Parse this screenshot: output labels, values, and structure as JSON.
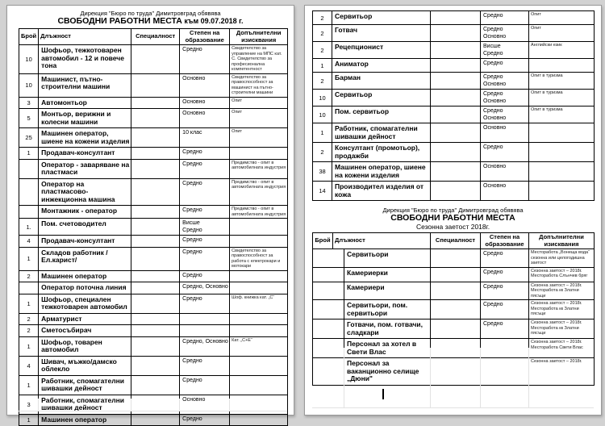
{
  "page1": {
    "title_line1": "Дирекция \"Бюро по труда\" Димитровград  обявява",
    "title_line2": "СВОБОДНИ РАБОТНИ МЕСТА",
    "title_suffix": " към 09.07.2018 г.",
    "columns": [
      "Брой",
      "Длъжност",
      "Специалност",
      "Степен на образование",
      "Допълнителни изисквания"
    ],
    "rows": [
      {
        "count": "10",
        "position": "Шофьор, тежкотоварен автомобил - 12 и повече тона",
        "specialty": "",
        "education": "Средно",
        "requirements": "Свидетелство за управление на МПС кат. С. Свидетелство за професионална компетентност"
      },
      {
        "count": "10",
        "position": "Машинист, пътно-строителни машини",
        "specialty": "",
        "education": "Основно",
        "requirements": "Свидетелство за правоспособност за машинист на пътно-строителни машини"
      },
      {
        "count": "3",
        "position": "Автомонтьор",
        "specialty": "",
        "education": "Основно",
        "requirements": "Опит"
      },
      {
        "count": "5",
        "position": "Монтьор, верижни и колесни машини",
        "specialty": "",
        "education": "Основно",
        "requirements": "Опит"
      },
      {
        "count": "25",
        "position": "Машинен оператор, шиене на кожени изделия",
        "specialty": "",
        "education": "10 клас",
        "requirements": "Опит"
      },
      {
        "count": "1",
        "position": "Продавач-консултант",
        "specialty": "",
        "education": "Средно",
        "requirements": ""
      },
      {
        "count": "",
        "position": "Оператор - заваряване на пластмаси",
        "specialty": "",
        "education": "Средно",
        "requirements": "Предимство - опит в автомобилната индустрия"
      },
      {
        "count": "",
        "position": "Оператор на пластмасово-инжекционна машина",
        "specialty": "",
        "education": "Средно",
        "requirements": "Предимство - опит в автомобилната индустрия"
      },
      {
        "count": "",
        "position": "Монтажник - оператор",
        "specialty": "",
        "education": "Средно",
        "requirements": "Предимство - опит в автомобилната индустрия"
      },
      {
        "count": "1.",
        "position": "Пом. счетоводител",
        "specialty": "",
        "education": "Висше\nСредно",
        "requirements": ""
      },
      {
        "count": "4",
        "position": "Продавач-консултант",
        "specialty": "",
        "education": "Средно",
        "requirements": ""
      },
      {
        "count": "1",
        "position": "Складов работник /Ел.карист/",
        "specialty": "",
        "education": "Средно",
        "requirements": "Свидетелство за правоспособност за работа с електрокари и мотокари"
      },
      {
        "count": "2",
        "position": "Машинен оператор",
        "specialty": "",
        "education": "Средно",
        "requirements": ""
      },
      {
        "count": "",
        "position": "Оператор поточна линия",
        "specialty": "",
        "education": "Средно, Основно",
        "requirements": ""
      },
      {
        "count": "1",
        "position": "Шофьор, специален тежкотоварен автомобил",
        "specialty": "",
        "education": "Средно",
        "requirements": "Шоф. книжка кат. „С“"
      },
      {
        "count": "2",
        "position": "Арматурист",
        "specialty": "",
        "education": "",
        "requirements": ""
      },
      {
        "count": "2",
        "position": "Сметосъбирач",
        "specialty": "",
        "education": "",
        "requirements": ""
      },
      {
        "count": "1",
        "position": "Шофьор, товарен автомобил",
        "specialty": "",
        "education": "Средно, Основно",
        "requirements": "Кат. „С+Е“"
      },
      {
        "count": "4",
        "position": "Шивач, мъжко/дамско облекло",
        "specialty": "",
        "education": "Средно",
        "requirements": ""
      },
      {
        "count": "1",
        "position": "Работник, спомагателни шивашки дейност",
        "specialty": "",
        "education": "Средно",
        "requirements": ""
      },
      {
        "count": "3",
        "position": "Работник, спомагателни шивашки дейност",
        "specialty": "",
        "education": "Основно",
        "requirements": ""
      },
      {
        "count": "1",
        "position": "Машинен оператор",
        "specialty": "",
        "education": "Средно",
        "requirements": ""
      }
    ]
  },
  "page2": {
    "continuation_rows": [
      {
        "count": "2",
        "position": "Сервитьор",
        "specialty": "",
        "education": "Средно",
        "requirements": "Опит"
      },
      {
        "count": "2",
        "position": "Готвач",
        "specialty": "",
        "education": "Средно\nОсновно",
        "requirements": "Опит"
      },
      {
        "count": "2",
        "position": "Рецепционист",
        "specialty": "",
        "education": "Висше\nСредно",
        "requirements": "Английски език"
      },
      {
        "count": "1",
        "position": "Аниматор",
        "specialty": "",
        "education": "Средно",
        "requirements": ""
      },
      {
        "count": "2",
        "position": "Барман",
        "specialty": "",
        "education": "Средно\nОсновно",
        "requirements": "Опит в туризма"
      },
      {
        "count": "10",
        "position": "Сервитьор",
        "specialty": "",
        "education": "Средно\nОсновно",
        "requirements": "Опит в туризма"
      },
      {
        "count": "10",
        "position": "Пом. сервитьор",
        "specialty": "",
        "education": "Средно\nОсновно",
        "requirements": "Опит в туризма"
      },
      {
        "count": "1",
        "position": "Работник, спомагателни шивашки дейност",
        "specialty": "",
        "education": "Основно",
        "requirements": ""
      },
      {
        "count": "2",
        "position": "Консултант (промотьор), продажби",
        "specialty": "",
        "education": "Средно",
        "requirements": ""
      },
      {
        "count": "38",
        "position": "Машинен оператор, шиене на кожени изделия",
        "specialty": "",
        "education": "Основно",
        "requirements": ""
      },
      {
        "count": "14",
        "position": "Производител изделия от кожа",
        "specialty": "",
        "education": "Основно",
        "requirements": ""
      }
    ],
    "seasonal": {
      "title_line1": "Дирекция \"Бюро по труда\" Димитровград  обявява",
      "title_line2": "СВОБОДНИ РАБОТНИ МЕСТА",
      "title_line3": "Сезонна заетост 2018г.",
      "columns": [
        "Брой",
        "Длъжност",
        "Специалност",
        "Степен на образование",
        "Допълнителни изисквания"
      ],
      "rows": [
        {
          "count": "",
          "position": "Сервитьори",
          "specialty": "",
          "education": "Средно",
          "requirements": "Месторабота „Вонеща вода“\nсезонна или целогодишна заетост"
        },
        {
          "count": "",
          "position": "Камериерки",
          "specialty": "",
          "education": "Средно",
          "requirements": "Сезонна заетост – 2018г.\nМесторабота Слънчев бряг"
        },
        {
          "count": "",
          "position": "Камериери",
          "specialty": "",
          "education": "Средно",
          "requirements": "Сезонна заетост – 2018г.\nМесторабота кк Златни пясъци"
        },
        {
          "count": "",
          "position": "Сервитьори, пом. сервитьори",
          "specialty": "",
          "education": "Средно",
          "requirements": "Сезонна заетост – 2018г.\nМесторабота кк Златни пясъци"
        },
        {
          "count": "",
          "position": "Готвачи, пом. готвачи, сладкари",
          "specialty": "",
          "education": "Средно",
          "requirements": "Сезонна заетост – 2018г.\nМесторабота кк Златни пясъци"
        },
        {
          "count": "",
          "position": "Персонал за хотел в Свети Влас",
          "specialty": "",
          "education": "",
          "requirements": "Сезонна заетост – 2018г.\nМесторабота Свети Влас"
        },
        {
          "count": "",
          "position": "Персонал за ваканционно селище „Дюни\"",
          "specialty": "",
          "education": "",
          "requirements": "Сезонна заетост – 2018г."
        }
      ]
    }
  }
}
